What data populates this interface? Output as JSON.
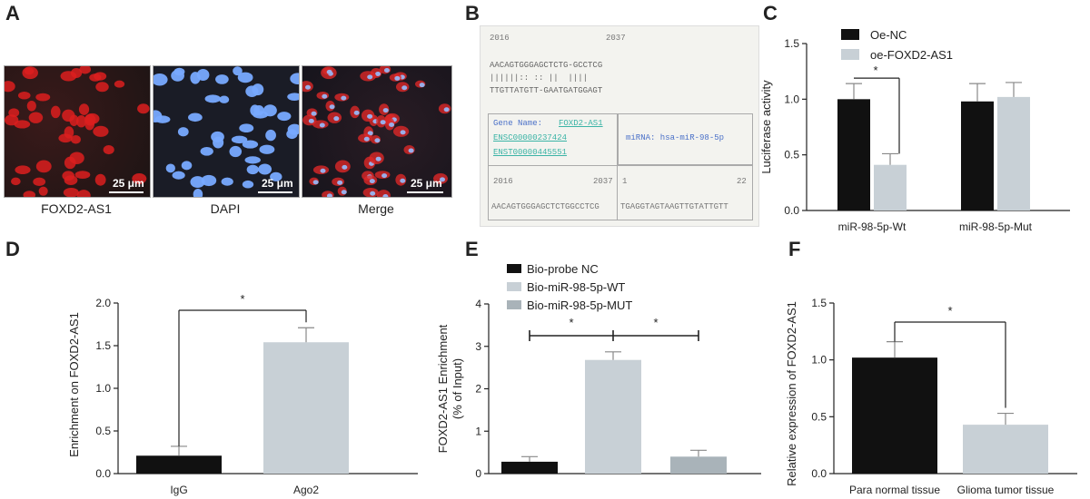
{
  "panels": {
    "A": "A",
    "B": "B",
    "C": "C",
    "D": "D",
    "E": "E",
    "F": "F"
  },
  "panel_a": {
    "captions": [
      "FOXD2-AS1",
      "DAPI",
      "Merge"
    ],
    "scale_label": "25 μm"
  },
  "panel_b": {
    "top_left_num": "2016",
    "top_right_num": "2037",
    "seq1": "AACAGTGGGAGCTCTG-GCCTCG",
    "seq_mid": "||||||:: :: ||  ||||",
    "seq2": "TTGTTATGTT-GAATGATGGAGT",
    "gene_name_label": "Gene Name:",
    "gene_name": "FOXD2-AS1",
    "ensc": "ENSC00000237424",
    "enst": "ENST00000445551",
    "mirna_label": "miRNA: hsa-miR-98-5p",
    "b_left_num": "2016",
    "b_mid_num": "2037",
    "b_one": "1",
    "b_right_num": "22",
    "b_seq_left": "AACAGTGGGAGCTCTGGCCTCG",
    "b_seq_right": "TGAGGTAGTAAGTTGTATTGTT"
  },
  "colors": {
    "black": "#111111",
    "light": "#c8d0d6",
    "mid": "#a9b3b9"
  },
  "chart_data": [
    {
      "id": "C",
      "type": "bar",
      "title": "",
      "categories": [
        "miR-98-5p-Wt",
        "miR-98-5p-Mut"
      ],
      "series": [
        {
          "name": "Oe-NC",
          "values": [
            1.0,
            0.98
          ],
          "errors": [
            0.14,
            0.16
          ],
          "color": "#111111"
        },
        {
          "name": "oe-FOXD2-AS1",
          "values": [
            0.41,
            1.02
          ],
          "errors": [
            0.1,
            0.13
          ],
          "color": "#c8d0d6"
        }
      ],
      "ylabel": "Luciferase activity",
      "xlabel": "",
      "ylim": [
        0,
        1.5
      ],
      "yticks": [
        "0.0",
        "0.5",
        "1.0",
        "1.5"
      ],
      "significance": "*",
      "legend": "top-left"
    },
    {
      "id": "D",
      "type": "bar",
      "title": "",
      "categories": [
        "IgG",
        "Ago2"
      ],
      "values": [
        0.21,
        1.54
      ],
      "errors": [
        0.11,
        0.17
      ],
      "colors": [
        "#111111",
        "#c8d0d6"
      ],
      "ylabel": "Enrichment on FOXD2-AS1",
      "xlabel": "",
      "ylim": [
        0,
        2.0
      ],
      "yticks": [
        "0.0",
        "0.5",
        "1.0",
        "1.5",
        "2.0"
      ],
      "significance": "*"
    },
    {
      "id": "E",
      "type": "bar",
      "title": "",
      "categories": [
        "Bio-probe NC",
        "Bio-miR-98-5p-WT",
        "Bio-miR-98-5p-MUT"
      ],
      "values": [
        0.28,
        2.68,
        0.4
      ],
      "errors": [
        0.12,
        0.19,
        0.15
      ],
      "colors": [
        "#111111",
        "#c8d0d6",
        "#a9b3b9"
      ],
      "ylabel": "FOXD2-AS1 Enrichment",
      "ylabel2": "(% of Input)",
      "xlabel": "",
      "ylim": [
        0,
        4
      ],
      "yticks": [
        "0",
        "1",
        "2",
        "3",
        "4"
      ],
      "significance": "*",
      "legend": "top"
    },
    {
      "id": "F",
      "type": "bar",
      "title": "",
      "categories": [
        "Para normal tissue",
        "Glioma tumor tissue"
      ],
      "values": [
        1.02,
        0.43
      ],
      "errors": [
        0.14,
        0.1
      ],
      "colors": [
        "#111111",
        "#c8d0d6"
      ],
      "ylabel": "Relative expression of FOXD2-AS1",
      "xlabel": "",
      "ylim": [
        0,
        1.5
      ],
      "yticks": [
        "0.0",
        "0.5",
        "1.0",
        "1.5"
      ],
      "significance": "*"
    }
  ]
}
